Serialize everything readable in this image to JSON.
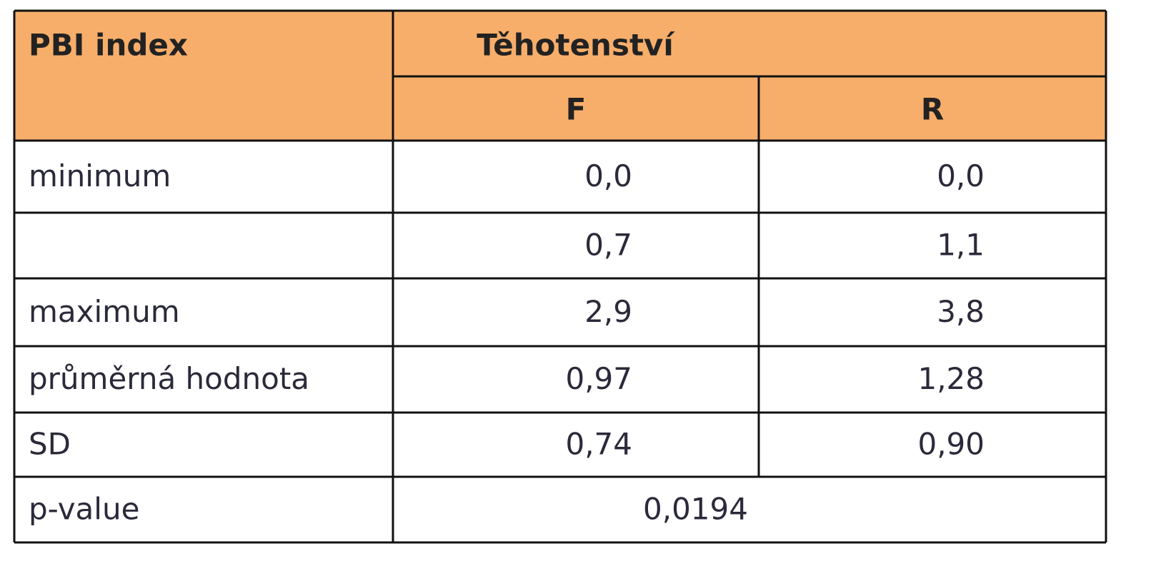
{
  "header": {
    "title": "PBI index",
    "group": "Těhotenství",
    "columns": [
      "F",
      "R"
    ]
  },
  "table": {
    "rows": [
      {
        "label": "minimum",
        "values": [
          "0,0",
          "0,0"
        ]
      },
      {
        "label": null,
        "values": [
          "0,7",
          "1,1"
        ]
      },
      {
        "label": "maximum",
        "values": [
          "2,9",
          "3,8"
        ]
      },
      {
        "label": "průměrná hodnota",
        "values": [
          "0,97",
          "1,28"
        ]
      },
      {
        "label": "SD",
        "values": [
          "0,74",
          "0,90"
        ]
      }
    ],
    "pvalue": {
      "label": "p-value",
      "value": "0,0194"
    }
  }
}
